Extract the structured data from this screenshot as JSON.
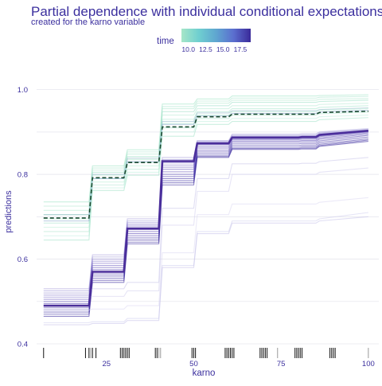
{
  "chart_data": {
    "type": "line",
    "title": "Partial dependence with individual conditional expectations",
    "subtitle": "created for the karno variable",
    "xlabel": "karno",
    "ylabel": "predictions",
    "xlim": [
      5,
      103
    ],
    "ylim": [
      0.4,
      1.05
    ],
    "x_ticks": [
      25,
      50,
      75,
      100
    ],
    "y_ticks": [
      0.4,
      0.6,
      0.8,
      1.0
    ],
    "y_tick_labels": [
      "0.4",
      "0.6",
      "0.8",
      "1.0"
    ],
    "grid": true,
    "legend": {
      "title": "time",
      "placement": "top",
      "type": "colorbar",
      "ticks": [
        "10.0",
        "12.5",
        "15.0",
        "17.5"
      ],
      "range": [
        9,
        19
      ],
      "colors": [
        "#a6e6c8",
        "#6fcfd0",
        "#5fa6d0",
        "#5b6fcf",
        "#3a2a9a"
      ]
    },
    "colors": {
      "title": "#3b2f9e",
      "axis_text": "#3b2f9e",
      "grid": "#e6e6ee"
    },
    "step_breaks": [
      20,
      30,
      40,
      50,
      60,
      80,
      85,
      100
    ],
    "series": [
      {
        "color": "#4b2e9b",
        "line": "solid",
        "values": [
          0.49,
          0.57,
          0.672,
          0.831,
          0.873,
          0.887,
          0.888,
          0.893,
          0.903
        ]
      },
      {
        "color": "#1a4a30",
        "line": "dashed",
        "values": [
          0.697,
          0.792,
          0.828,
          0.912,
          0.936,
          0.942,
          0.942,
          0.946,
          0.949
        ]
      }
    ],
    "ice_curves": [
      {
        "color": "#9ee3c4",
        "values": [
          0.735,
          0.82,
          0.858,
          0.966,
          0.978,
          0.985,
          0.985,
          0.986,
          0.988
        ]
      },
      {
        "color": "#a9e4cc",
        "values": [
          0.725,
          0.815,
          0.853,
          0.96,
          0.973,
          0.98,
          0.98,
          0.982,
          0.984
        ]
      },
      {
        "color": "#b2e8d0",
        "values": [
          0.715,
          0.81,
          0.848,
          0.955,
          0.968,
          0.975,
          0.975,
          0.977,
          0.979
        ]
      },
      {
        "color": "#9de0c6",
        "values": [
          0.705,
          0.805,
          0.842,
          0.948,
          0.962,
          0.97,
          0.97,
          0.972,
          0.975
        ]
      },
      {
        "color": "#b6e9d4",
        "values": [
          0.695,
          0.798,
          0.835,
          0.94,
          0.955,
          0.962,
          0.962,
          0.965,
          0.968
        ]
      },
      {
        "color": "#a8e5cd",
        "values": [
          0.685,
          0.79,
          0.828,
          0.93,
          0.948,
          0.955,
          0.955,
          0.958,
          0.962
        ]
      },
      {
        "color": "#b8eed6",
        "values": [
          0.675,
          0.782,
          0.82,
          0.92,
          0.94,
          0.948,
          0.948,
          0.951,
          0.955
        ]
      },
      {
        "color": "#aee6cf",
        "values": [
          0.665,
          0.775,
          0.812,
          0.91,
          0.932,
          0.94,
          0.94,
          0.943,
          0.947
        ]
      },
      {
        "color": "#bfeede",
        "values": [
          0.655,
          0.768,
          0.805,
          0.9,
          0.925,
          0.932,
          0.932,
          0.936,
          0.94
        ]
      },
      {
        "color": "#a3e2c9",
        "values": [
          0.645,
          0.762,
          0.798,
          0.89,
          0.918,
          0.925,
          0.925,
          0.929,
          0.934
        ]
      },
      {
        "color": "#8fb8c8",
        "values": [
          0.705,
          0.8,
          0.838,
          0.925,
          0.945,
          0.95,
          0.95,
          0.953,
          0.957
        ]
      },
      {
        "color": "#7fa0c8",
        "values": [
          0.69,
          0.79,
          0.83,
          0.918,
          0.938,
          0.944,
          0.944,
          0.947,
          0.951
        ]
      },
      {
        "color": "#a9a3dc",
        "values": [
          0.53,
          0.61,
          0.695,
          0.84,
          0.88,
          0.895,
          0.896,
          0.9,
          0.908
        ]
      },
      {
        "color": "#9d94d6",
        "values": [
          0.525,
          0.605,
          0.69,
          0.835,
          0.878,
          0.892,
          0.893,
          0.898,
          0.906
        ]
      },
      {
        "color": "#8f85d0",
        "values": [
          0.52,
          0.6,
          0.686,
          0.831,
          0.876,
          0.89,
          0.891,
          0.896,
          0.904
        ]
      },
      {
        "color": "#8678cc",
        "values": [
          0.515,
          0.595,
          0.682,
          0.827,
          0.874,
          0.888,
          0.889,
          0.894,
          0.903
        ]
      },
      {
        "color": "#7b6cc6",
        "values": [
          0.51,
          0.59,
          0.678,
          0.822,
          0.872,
          0.886,
          0.887,
          0.892,
          0.902
        ]
      },
      {
        "color": "#7061c1",
        "values": [
          0.505,
          0.585,
          0.674,
          0.817,
          0.87,
          0.884,
          0.885,
          0.891,
          0.901
        ]
      },
      {
        "color": "#6757bc",
        "values": [
          0.5,
          0.58,
          0.67,
          0.812,
          0.866,
          0.882,
          0.883,
          0.889,
          0.9
        ]
      },
      {
        "color": "#5e4db7",
        "values": [
          0.495,
          0.575,
          0.665,
          0.806,
          0.862,
          0.879,
          0.88,
          0.886,
          0.898
        ]
      },
      {
        "color": "#5544b2",
        "values": [
          0.49,
          0.57,
          0.66,
          0.8,
          0.857,
          0.876,
          0.877,
          0.883,
          0.895
        ]
      },
      {
        "color": "#4d3cad",
        "values": [
          0.485,
          0.565,
          0.655,
          0.795,
          0.853,
          0.872,
          0.873,
          0.879,
          0.892
        ]
      },
      {
        "color": "#4535a8",
        "values": [
          0.48,
          0.56,
          0.65,
          0.79,
          0.849,
          0.868,
          0.869,
          0.875,
          0.888
        ]
      },
      {
        "color": "#3e2ea3",
        "values": [
          0.475,
          0.555,
          0.645,
          0.785,
          0.845,
          0.864,
          0.865,
          0.871,
          0.884
        ]
      },
      {
        "color": "#38289e",
        "values": [
          0.47,
          0.55,
          0.64,
          0.78,
          0.842,
          0.861,
          0.862,
          0.868,
          0.881
        ]
      },
      {
        "color": "#332399",
        "values": [
          0.465,
          0.545,
          0.636,
          0.775,
          0.84,
          0.859,
          0.86,
          0.866,
          0.878
        ]
      },
      {
        "color": "#c9c5ea",
        "values": [
          0.52,
          0.53,
          0.545,
          0.72,
          0.79,
          0.825,
          0.826,
          0.83,
          0.84
        ]
      },
      {
        "color": "#d3cfee",
        "values": [
          0.51,
          0.512,
          0.525,
          0.68,
          0.76,
          0.8,
          0.8,
          0.805,
          0.815
        ]
      },
      {
        "color": "#dcd9f2",
        "values": [
          0.48,
          0.482,
          0.49,
          0.615,
          0.705,
          0.73,
          0.73,
          0.734,
          0.745
        ]
      },
      {
        "color": "#d0cdee",
        "values": [
          0.45,
          0.452,
          0.46,
          0.585,
          0.665,
          0.69,
          0.69,
          0.695,
          0.71
        ]
      },
      {
        "color": "#c6c2e9",
        "values": [
          0.445,
          0.448,
          0.455,
          0.58,
          0.66,
          0.685,
          0.685,
          0.69,
          0.7
        ]
      }
    ],
    "rug_x": [
      7,
      19,
      20,
      20.5,
      21,
      22,
      29,
      29.5,
      30,
      30.5,
      31,
      31.5,
      39,
      39.5,
      40,
      40.5,
      49.5,
      50,
      50.5,
      59,
      59.5,
      60,
      60.5,
      61,
      61.5,
      69,
      69.5,
      70,
      70.5,
      71,
      74,
      79,
      79.5,
      80,
      80.5,
      81,
      89,
      89.5,
      90,
      90.5,
      100
    ],
    "rug_gray_x": [
      20.5,
      40,
      40.5,
      74,
      100
    ]
  }
}
